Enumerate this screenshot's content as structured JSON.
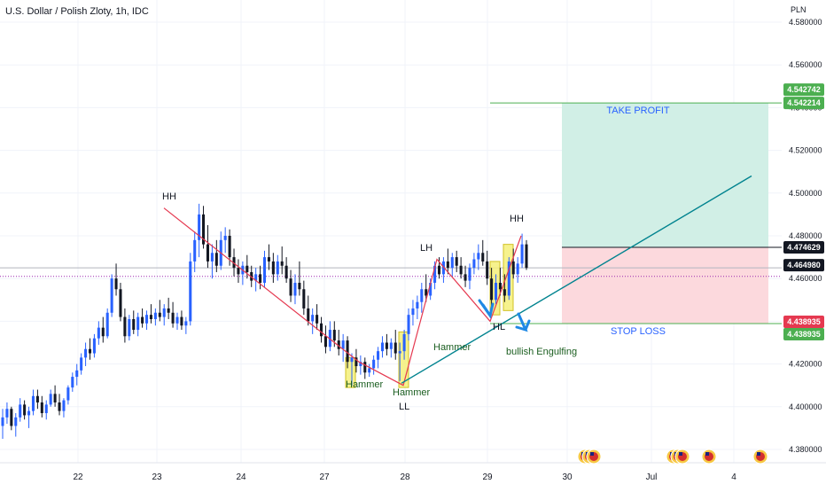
{
  "header": {
    "title": "U.S. Dollar / Polish Zloty, 1h, IDC",
    "currency": "PLN"
  },
  "colors": {
    "up": "#2962ff",
    "down": "#131722",
    "profit_line": "#4caf50",
    "trend_red": "#e53950",
    "trend_teal": "#00838f",
    "take_profit_zone": "#d1efe6",
    "stop_loss_zone": "#fcd9dd",
    "hammer_box": "#f5f07a",
    "last_price": "#131722",
    "mid_dotted": "#9c27b0"
  },
  "chart_data": {
    "type": "candlestick",
    "x_ticks": [
      "22",
      "23",
      "24",
      "27",
      "28",
      "29",
      "30",
      "Jul",
      "4"
    ],
    "y_ticks": [
      "4.380000",
      "4.400000",
      "4.420000",
      "4.440000",
      "4.460000",
      "4.480000",
      "4.500000",
      "4.520000",
      "4.540000",
      "4.560000",
      "4.580000"
    ],
    "ylim": [
      4.375,
      4.584
    ],
    "price_labels": {
      "take_profit_top": "4.542742",
      "take_profit": "4.542214",
      "entry": "4.474629",
      "last": "4.464980",
      "stop_loss_top": "4.438935",
      "stop_loss": "4.438935"
    },
    "levels": {
      "take_profit": 4.5422,
      "entry": 4.4746,
      "last": 4.465,
      "mid": 4.461,
      "stop_loss": 4.4389
    },
    "zones": {
      "take_profit_label": "TAKE PROFIT",
      "stop_loss_label": "STOP LOSS"
    },
    "annotations": [
      {
        "key": "hh1",
        "text": "HH"
      },
      {
        "key": "hammer1",
        "text": "Hammer"
      },
      {
        "key": "hammer2",
        "text": "Hammer"
      },
      {
        "key": "ll",
        "text": "LL"
      },
      {
        "key": "lh",
        "text": "LH"
      },
      {
        "key": "hammer3",
        "text": "Hammer"
      },
      {
        "key": "hl",
        "text": "HL"
      },
      {
        "key": "hh2",
        "text": "HH"
      },
      {
        "key": "engulf",
        "text": "bullish Engulfing"
      }
    ],
    "candles": [
      [
        4.391,
        4.399,
        4.385,
        4.395
      ],
      [
        4.395,
        4.402,
        4.392,
        4.399
      ],
      [
        4.399,
        4.4,
        4.389,
        4.391
      ],
      [
        4.391,
        4.397,
        4.386,
        4.395
      ],
      [
        4.395,
        4.404,
        4.393,
        4.401
      ],
      [
        4.401,
        4.403,
        4.394,
        4.396
      ],
      [
        4.396,
        4.4,
        4.39,
        4.398
      ],
      [
        4.398,
        4.408,
        4.396,
        4.405
      ],
      [
        4.405,
        4.408,
        4.399,
        4.402
      ],
      [
        4.402,
        4.405,
        4.395,
        4.397
      ],
      [
        4.397,
        4.403,
        4.394,
        4.401
      ],
      [
        4.401,
        4.408,
        4.4,
        4.406
      ],
      [
        4.406,
        4.41,
        4.4,
        4.402
      ],
      [
        4.402,
        4.406,
        4.396,
        4.398
      ],
      [
        4.398,
        4.404,
        4.395,
        4.403
      ],
      [
        4.403,
        4.41,
        4.401,
        4.409
      ],
      [
        4.409,
        4.416,
        4.407,
        4.414
      ],
      [
        4.414,
        4.42,
        4.41,
        4.417
      ],
      [
        4.417,
        4.425,
        4.415,
        4.423
      ],
      [
        4.423,
        4.43,
        4.419,
        4.427
      ],
      [
        4.427,
        4.432,
        4.422,
        4.425
      ],
      [
        4.425,
        4.434,
        4.423,
        4.432
      ],
      [
        4.432,
        4.44,
        4.429,
        4.437
      ],
      [
        4.437,
        4.442,
        4.43,
        4.433
      ],
      [
        4.433,
        4.446,
        4.432,
        4.444
      ],
      [
        4.444,
        4.462,
        4.442,
        4.46
      ],
      [
        4.46,
        4.467,
        4.452,
        4.455
      ],
      [
        4.455,
        4.458,
        4.44,
        4.442
      ],
      [
        4.442,
        4.446,
        4.43,
        4.433
      ],
      [
        4.433,
        4.443,
        4.431,
        4.441
      ],
      [
        4.441,
        4.445,
        4.434,
        4.436
      ],
      [
        4.436,
        4.444,
        4.433,
        4.442
      ],
      [
        4.442,
        4.446,
        4.437,
        4.439
      ],
      [
        4.439,
        4.445,
        4.436,
        4.443
      ],
      [
        4.443,
        4.448,
        4.439,
        4.441
      ],
      [
        4.441,
        4.446,
        4.438,
        4.444
      ],
      [
        4.444,
        4.45,
        4.44,
        4.442
      ],
      [
        4.442,
        4.448,
        4.438,
        4.446
      ],
      [
        4.446,
        4.451,
        4.441,
        4.444
      ],
      [
        4.444,
        4.449,
        4.437,
        4.439
      ],
      [
        4.439,
        4.444,
        4.436,
        4.442
      ],
      [
        4.442,
        4.445,
        4.436,
        4.438
      ],
      [
        4.438,
        4.442,
        4.434,
        4.44
      ],
      [
        4.44,
        4.472,
        4.438,
        4.468
      ],
      [
        4.468,
        4.482,
        4.463,
        4.478
      ],
      [
        4.478,
        4.495,
        4.47,
        4.49
      ],
      [
        4.49,
        4.494,
        4.474,
        4.476
      ],
      [
        4.476,
        4.485,
        4.465,
        4.468
      ],
      [
        4.468,
        4.476,
        4.46,
        4.472
      ],
      [
        4.472,
        4.478,
        4.463,
        4.466
      ],
      [
        4.466,
        4.482,
        4.464,
        4.478
      ],
      [
        4.478,
        4.484,
        4.472,
        4.48
      ],
      [
        4.48,
        4.483,
        4.466,
        4.47
      ],
      [
        4.47,
        4.474,
        4.461,
        4.465
      ],
      [
        4.465,
        4.469,
        4.458,
        4.462
      ],
      [
        4.462,
        4.468,
        4.457,
        4.466
      ],
      [
        4.466,
        4.471,
        4.46,
        4.463
      ],
      [
        4.463,
        4.466,
        4.456,
        4.459
      ],
      [
        4.459,
        4.465,
        4.454,
        4.462
      ],
      [
        4.462,
        4.466,
        4.455,
        4.458
      ],
      [
        4.458,
        4.473,
        4.456,
        4.47
      ],
      [
        4.47,
        4.476,
        4.464,
        4.468
      ],
      [
        4.468,
        4.472,
        4.458,
        4.462
      ],
      [
        4.462,
        4.471,
        4.459,
        4.468
      ],
      [
        4.468,
        4.475,
        4.462,
        4.466
      ],
      [
        4.466,
        4.47,
        4.458,
        4.46
      ],
      [
        4.46,
        4.464,
        4.449,
        4.452
      ],
      [
        4.452,
        4.462,
        4.448,
        4.458
      ],
      [
        4.458,
        4.468,
        4.452,
        4.455
      ],
      [
        4.455,
        4.459,
        4.443,
        4.446
      ],
      [
        4.446,
        4.452,
        4.438,
        4.44
      ],
      [
        4.44,
        4.446,
        4.434,
        4.443
      ],
      [
        4.443,
        4.448,
        4.436,
        4.439
      ],
      [
        4.439,
        4.442,
        4.43,
        4.433
      ],
      [
        4.433,
        4.438,
        4.425,
        4.428
      ],
      [
        4.428,
        4.44,
        4.426,
        4.436
      ],
      [
        4.436,
        4.44,
        4.428,
        4.431
      ],
      [
        4.431,
        4.436,
        4.424,
        4.427
      ],
      [
        4.427,
        4.434,
        4.421,
        4.431
      ],
      [
        4.431,
        4.433,
        4.418,
        4.421
      ],
      [
        4.421,
        4.425,
        4.41,
        4.423
      ],
      [
        4.423,
        4.427,
        4.416,
        4.419
      ],
      [
        4.419,
        4.424,
        4.415,
        4.421
      ],
      [
        4.421,
        4.423,
        4.413,
        4.416
      ],
      [
        4.416,
        4.42,
        4.414,
        4.418
      ],
      [
        4.418,
        4.424,
        4.415,
        4.422
      ],
      [
        4.422,
        4.428,
        4.418,
        4.426
      ],
      [
        4.426,
        4.433,
        4.423,
        4.43
      ],
      [
        4.43,
        4.434,
        4.424,
        4.427
      ],
      [
        4.427,
        4.432,
        4.423,
        4.43
      ],
      [
        4.43,
        4.436,
        4.422,
        4.425
      ],
      [
        4.425,
        4.43,
        4.412,
        4.426
      ],
      [
        4.426,
        4.436,
        4.422,
        4.434
      ],
      [
        4.434,
        4.446,
        4.431,
        4.443
      ],
      [
        4.443,
        4.45,
        4.438,
        4.446
      ],
      [
        4.446,
        4.452,
        4.441,
        4.449
      ],
      [
        4.449,
        4.458,
        4.444,
        4.455
      ],
      [
        4.455,
        4.462,
        4.449,
        4.452
      ],
      [
        4.452,
        4.46,
        4.45,
        4.458
      ],
      [
        4.458,
        4.468,
        4.455,
        4.466
      ],
      [
        4.466,
        4.47,
        4.46,
        4.462
      ],
      [
        4.462,
        4.47,
        4.458,
        4.468
      ],
      [
        4.468,
        4.474,
        4.462,
        4.465
      ],
      [
        4.465,
        4.472,
        4.461,
        4.47
      ],
      [
        4.47,
        4.473,
        4.463,
        4.466
      ],
      [
        4.466,
        4.47,
        4.46,
        4.462
      ],
      [
        4.462,
        4.466,
        4.456,
        4.459
      ],
      [
        4.459,
        4.467,
        4.455,
        4.465
      ],
      [
        4.465,
        4.472,
        4.462,
        4.469
      ],
      [
        4.469,
        4.476,
        4.464,
        4.472
      ],
      [
        4.472,
        4.478,
        4.466,
        4.468
      ],
      [
        4.468,
        4.473,
        4.457,
        4.46
      ],
      [
        4.46,
        4.465,
        4.447,
        4.45
      ],
      [
        4.45,
        4.462,
        4.448,
        4.458
      ],
      [
        4.458,
        4.465,
        4.452,
        4.455
      ],
      [
        4.455,
        4.462,
        4.449,
        4.452
      ],
      [
        4.452,
        4.47,
        4.45,
        4.468
      ],
      [
        4.468,
        4.474,
        4.46,
        4.462
      ],
      [
        4.462,
        4.47,
        4.458,
        4.467
      ],
      [
        4.467,
        4.481,
        4.465,
        4.476
      ],
      [
        4.476,
        4.478,
        4.464,
        4.465
      ]
    ]
  }
}
